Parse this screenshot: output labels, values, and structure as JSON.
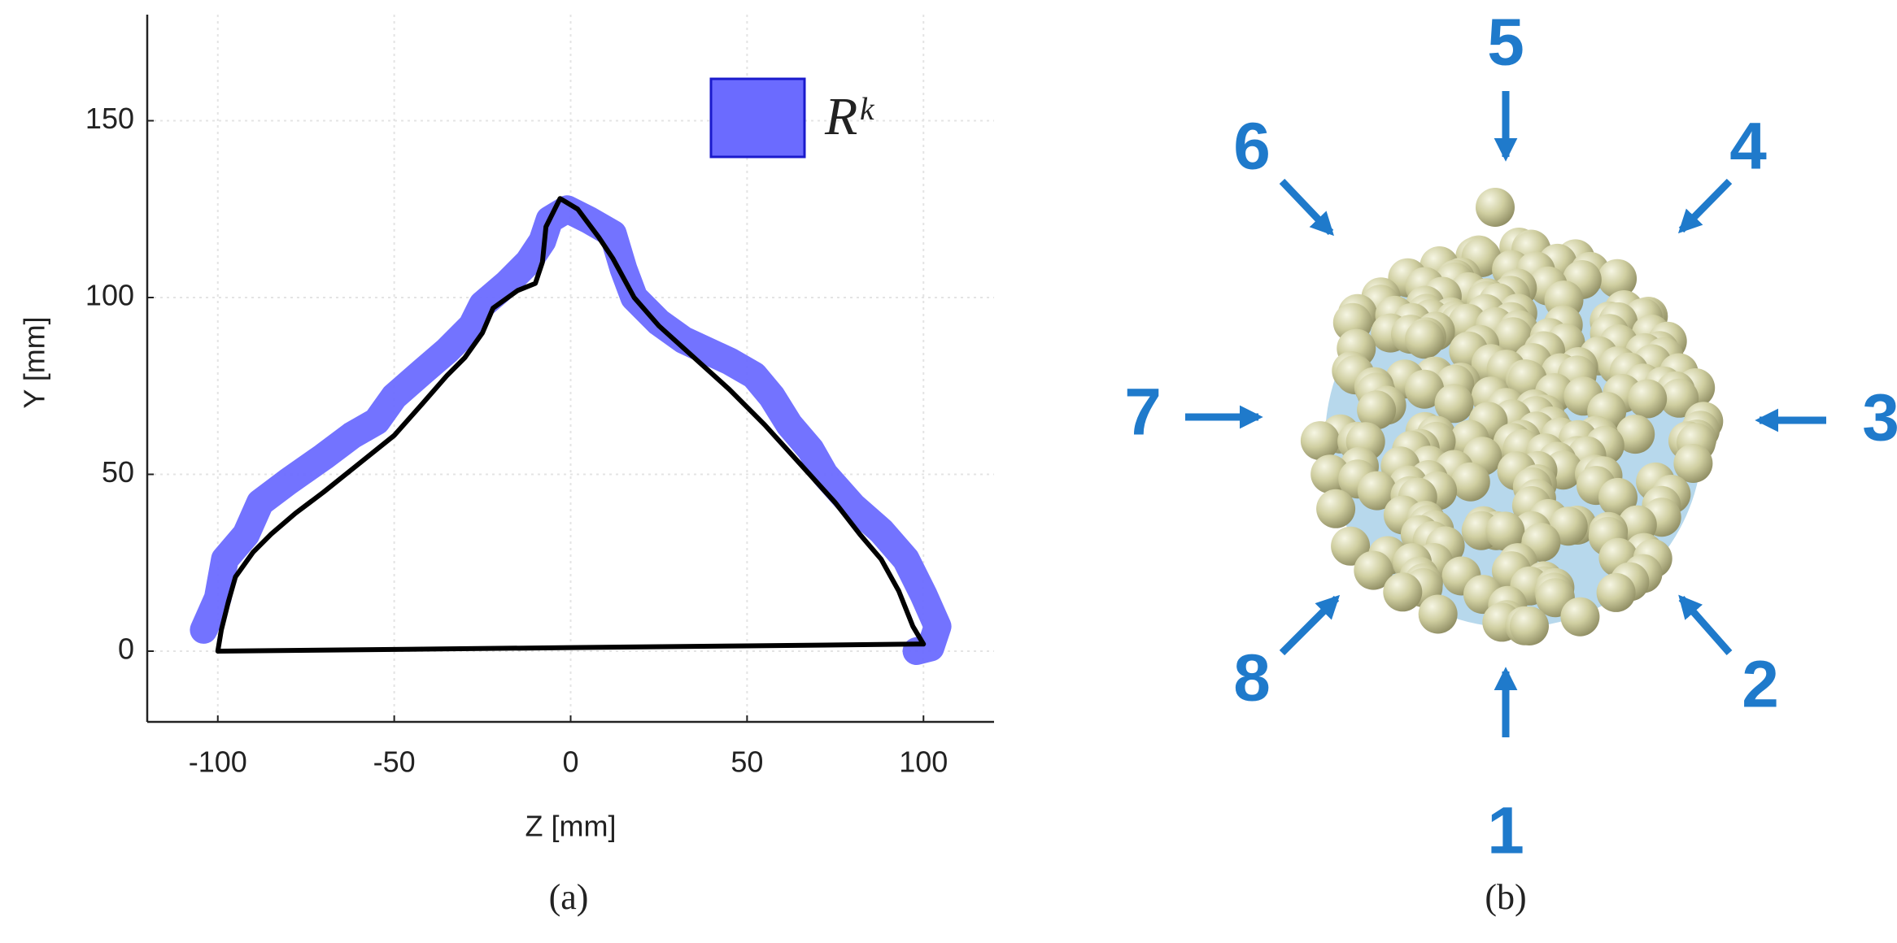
{
  "chart_data": {
    "type": "line",
    "xlabel": "Z [mm]",
    "ylabel": "Y [mm]",
    "xlim": [
      -120,
      120
    ],
    "ylim": [
      -20,
      180
    ],
    "xticks": [
      -100,
      -50,
      0,
      50,
      100
    ],
    "yticks": [
      0,
      50,
      100,
      150
    ],
    "grid": true,
    "legend": "upper right",
    "series": [
      {
        "name": "Rᵏ",
        "color": "#6b6bff",
        "edgecolor": "#1a1acc",
        "x": [
          -104,
          -100,
          -98,
          -92,
          -88,
          -80,
          -70,
          -62,
          -55,
          -50,
          -42,
          -35,
          -28,
          -25,
          -18,
          -12,
          -8,
          -6,
          -1,
          5,
          12,
          15,
          18,
          25,
          32,
          45,
          52,
          57,
          62,
          68,
          72,
          80,
          88,
          95,
          100,
          104,
          102,
          98
        ],
        "y": [
          6,
          15,
          26,
          33,
          42,
          48,
          55,
          61,
          65,
          72,
          79,
          85,
          92,
          98,
          104,
          110,
          116,
          122,
          125,
          122,
          118,
          108,
          100,
          93,
          88,
          82,
          78,
          72,
          64,
          57,
          50,
          41,
          34,
          26,
          16,
          7,
          1,
          0
        ]
      },
      {
        "color": "#000000",
        "x": [
          -100,
          -99,
          -97,
          -95,
          -90,
          -85,
          -78,
          -70,
          -60,
          -50,
          -42,
          -35,
          -30,
          -25,
          -22,
          -15,
          -10,
          -8,
          -7,
          -3,
          2,
          5,
          8,
          12,
          18,
          25,
          35,
          45,
          55,
          65,
          75,
          82,
          88,
          93,
          97,
          100,
          98,
          50,
          0,
          -50,
          -100
        ],
        "y": [
          0,
          6,
          14,
          21,
          28,
          33,
          39,
          45,
          53,
          61,
          70,
          78,
          83,
          90,
          97,
          102,
          104,
          110,
          120,
          128,
          125,
          121,
          117,
          111,
          100,
          92,
          83,
          74,
          64,
          53,
          42,
          33,
          26,
          17,
          7,
          2,
          2,
          1.5,
          1,
          0.5,
          0
        ]
      }
    ]
  },
  "panel_labels": [
    "(a)",
    "(b)"
  ],
  "directions": [
    "1",
    "2",
    "3",
    "4",
    "5",
    "6",
    "7",
    "8"
  ]
}
